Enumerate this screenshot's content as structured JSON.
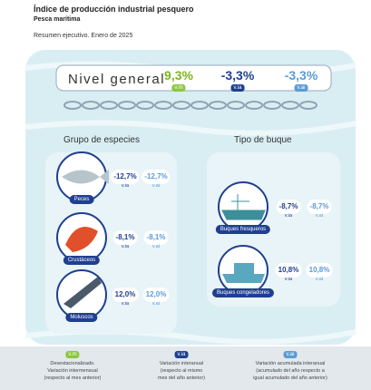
{
  "header": {
    "title": "Índice de producción industrial pesquero",
    "subtitle": "Pesca marítima",
    "summary": "Resumen ejecutivo. Enero de 2025"
  },
  "general": {
    "label": "Nivel general",
    "values": [
      {
        "value": "9,3%",
        "tag": "v.m"
      },
      {
        "value": "-3,3%",
        "tag": "v.ia"
      },
      {
        "value": "-3,3%",
        "tag": "v.ai"
      }
    ]
  },
  "species": {
    "title": "Grupo de especies",
    "items": [
      {
        "label": "Peces",
        "values": [
          {
            "value": "-12,7%",
            "tag": "v.ia"
          },
          {
            "value": "-12,7%",
            "tag": "v.ai"
          }
        ]
      },
      {
        "label": "Crustáceos",
        "values": [
          {
            "value": "-8,1%",
            "tag": "v.ia"
          },
          {
            "value": "-8,1%",
            "tag": "v.ai"
          }
        ]
      },
      {
        "label": "Moluscos",
        "values": [
          {
            "value": "12,0%",
            "tag": "v.ia"
          },
          {
            "value": "12,0%",
            "tag": "v.ai"
          }
        ]
      }
    ]
  },
  "vessels": {
    "title": "Tipo de buque",
    "items": [
      {
        "label": "Buques fresqueros",
        "values": [
          {
            "value": "-8,7%",
            "tag": "v.ia"
          },
          {
            "value": "-8,7%",
            "tag": "v.ai"
          }
        ]
      },
      {
        "label": "Buques congeladores",
        "values": [
          {
            "value": "10,8%",
            "tag": "v.ia"
          },
          {
            "value": "10,8%",
            "tag": "v.ai"
          }
        ]
      }
    ]
  },
  "legend": [
    {
      "tag": "v.m",
      "lines": [
        "Desestacionalizado.",
        "Variación intermensual",
        "(respecto al mes anterior)"
      ]
    },
    {
      "tag": "v.ia",
      "lines": [
        "Variación interanual",
        "(respecto al mismo",
        "mes del año anterior)"
      ]
    },
    {
      "tag": "v.ai",
      "lines": [
        "Variación acumulada interanual",
        "(acumulado del año respecto a",
        "igual acumulado del año anterior)"
      ]
    }
  ]
}
